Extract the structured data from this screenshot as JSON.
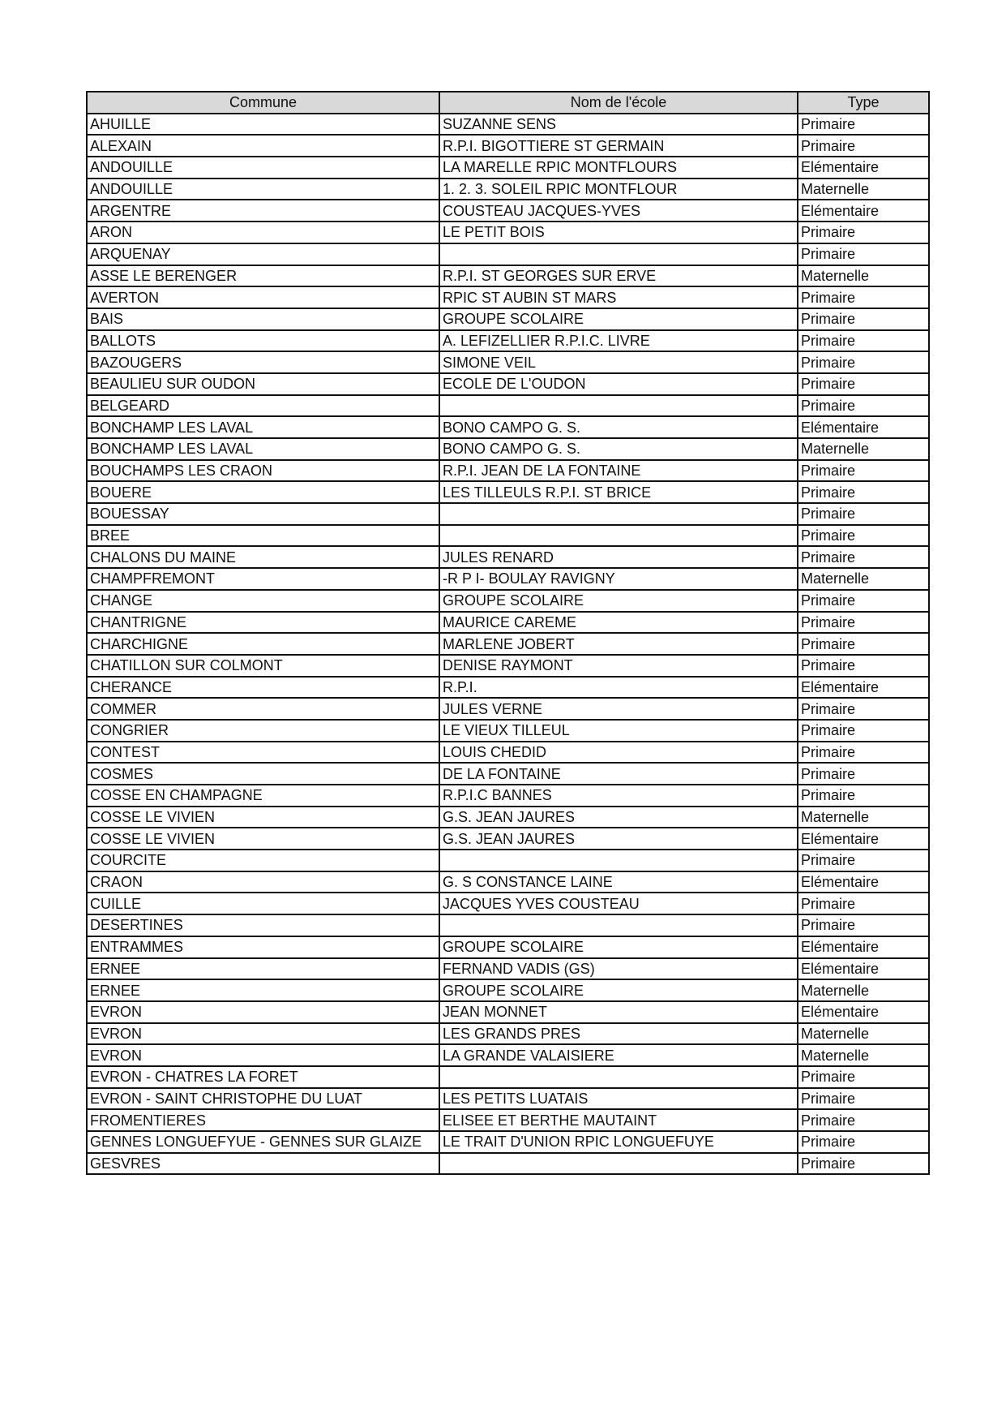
{
  "table": {
    "headers": [
      "Commune",
      "Nom de l'école",
      "Type"
    ],
    "rows": [
      [
        "AHUILLE",
        "SUZANNE SENS",
        "Primaire"
      ],
      [
        "ALEXAIN",
        "R.P.I. BIGOTTIERE ST GERMAIN",
        "Primaire"
      ],
      [
        "ANDOUILLE",
        "LA MARELLE RPIC MONTFLOURS",
        "Elémentaire"
      ],
      [
        "ANDOUILLE",
        "1. 2. 3. SOLEIL RPIC MONTFLOUR",
        "Maternelle"
      ],
      [
        "ARGENTRE",
        "COUSTEAU JACQUES-YVES",
        "Elémentaire"
      ],
      [
        "ARON",
        "LE PETIT BOIS",
        "Primaire"
      ],
      [
        "ARQUENAY",
        "",
        "Primaire"
      ],
      [
        "ASSE LE BERENGER",
        "R.P.I. ST GEORGES SUR ERVE",
        "Maternelle"
      ],
      [
        "AVERTON",
        "RPIC ST AUBIN ST MARS",
        "Primaire"
      ],
      [
        "BAIS",
        "GROUPE SCOLAIRE",
        "Primaire"
      ],
      [
        "BALLOTS",
        "A. LEFIZELLIER  R.P.I.C. LIVRE",
        "Primaire"
      ],
      [
        "BAZOUGERS",
        "SIMONE VEIL",
        "Primaire"
      ],
      [
        "BEAULIEU SUR OUDON",
        "ECOLE DE L'OUDON",
        "Primaire"
      ],
      [
        "BELGEARD",
        "",
        "Primaire"
      ],
      [
        "BONCHAMP LES LAVAL",
        "BONO CAMPO G. S.",
        "Elémentaire"
      ],
      [
        "BONCHAMP LES LAVAL",
        "BONO CAMPO G. S.",
        "Maternelle"
      ],
      [
        "BOUCHAMPS LES CRAON",
        "R.P.I. JEAN DE LA FONTAINE",
        "Primaire"
      ],
      [
        "BOUERE",
        "LES TILLEULS R.P.I. ST BRICE",
        "Primaire"
      ],
      [
        "BOUESSAY",
        "",
        "Primaire"
      ],
      [
        "BREE",
        "",
        "Primaire"
      ],
      [
        "CHALONS DU MAINE",
        "JULES RENARD",
        "Primaire"
      ],
      [
        "CHAMPFREMONT",
        "-R P I- BOULAY RAVIGNY",
        "Maternelle"
      ],
      [
        "CHANGE",
        "GROUPE SCOLAIRE",
        "Primaire"
      ],
      [
        "CHANTRIGNE",
        "MAURICE CAREME",
        "Primaire"
      ],
      [
        "CHARCHIGNE",
        "MARLENE JOBERT",
        "Primaire"
      ],
      [
        "CHATILLON SUR COLMONT",
        "DENISE RAYMONT",
        "Primaire"
      ],
      [
        "CHERANCE",
        "R.P.I.",
        "Elémentaire"
      ],
      [
        "COMMER",
        "JULES VERNE",
        "Primaire"
      ],
      [
        "CONGRIER",
        "LE VIEUX TILLEUL",
        "Primaire"
      ],
      [
        "CONTEST",
        "LOUIS CHEDID",
        "Primaire"
      ],
      [
        "COSMES",
        "DE LA FONTAINE",
        "Primaire"
      ],
      [
        "COSSE EN CHAMPAGNE",
        "R.P.I.C BANNES",
        "Primaire"
      ],
      [
        "COSSE LE VIVIEN",
        "G.S. JEAN JAURES",
        "Maternelle"
      ],
      [
        "COSSE LE VIVIEN",
        "G.S. JEAN JAURES",
        "Elémentaire"
      ],
      [
        "COURCITE",
        "",
        "Primaire"
      ],
      [
        "CRAON",
        "G. S CONSTANCE LAINE",
        "Elémentaire"
      ],
      [
        "CUILLE",
        "JACQUES YVES COUSTEAU",
        "Primaire"
      ],
      [
        "DESERTINES",
        "",
        "Primaire"
      ],
      [
        "ENTRAMMES",
        "GROUPE SCOLAIRE",
        "Elémentaire"
      ],
      [
        "ERNEE",
        "FERNAND VADIS (GS)",
        "Elémentaire"
      ],
      [
        "ERNEE",
        "GROUPE SCOLAIRE",
        "Maternelle"
      ],
      [
        "EVRON",
        "JEAN MONNET",
        "Elémentaire"
      ],
      [
        "EVRON",
        "LES GRANDS PRES",
        "Maternelle"
      ],
      [
        "EVRON",
        "LA GRANDE VALAISIERE",
        "Maternelle"
      ],
      [
        "EVRON - CHATRES LA FORET",
        "",
        "Primaire"
      ],
      [
        "EVRON - SAINT CHRISTOPHE DU LUAT",
        "LES PETITS LUATAIS",
        "Primaire"
      ],
      [
        "FROMENTIERES",
        "ELISEE ET BERTHE MAUTAINT",
        "Primaire"
      ],
      [
        "GENNES LONGUEFYUE - GENNES SUR GLAIZE",
        "LE TRAIT D'UNION RPIC LONGUEFUYE",
        "Primaire"
      ],
      [
        "GESVRES",
        "",
        "Primaire"
      ]
    ]
  }
}
